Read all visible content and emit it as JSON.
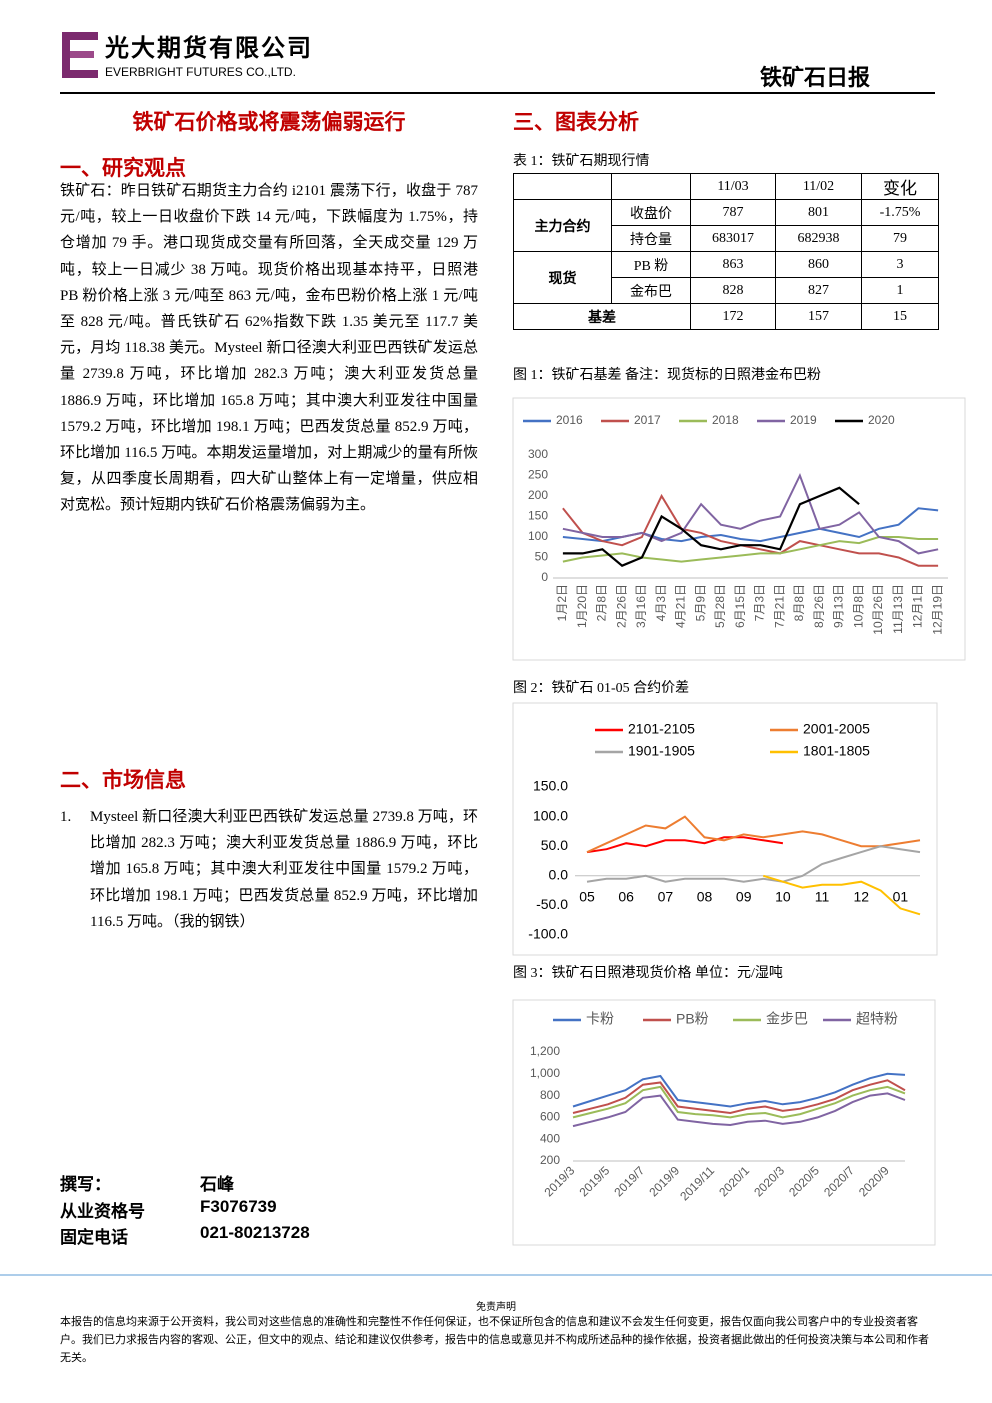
{
  "header": {
    "company_cn": "光大期货有限公司",
    "company_en": "EVERBRIGHT FUTURES CO.,LTD.",
    "report": "铁矿石日报"
  },
  "title": "铁矿石价格或将震荡偏弱运行",
  "sections": [
    {
      "heading": "一、研究观点",
      "body": "铁矿石：昨日铁矿石期货主力合约 i2101 震荡下行，收盘于 787 元/吨，较上一日收盘价下跌 14 元/吨，下跌幅度为 1.75%，持仓增加 79 手。港口现货成交量有所回落，全天成交量 129 万吨，较上一日减少 38 万吨。现货价格出现基本持平，日照港 PB 粉价格上涨 3 元/吨至 863 元/吨，金布巴粉价格上涨 1 元/吨至 828 元/吨。普氏铁矿石 62%指数下跌 1.35 美元至 117.7 美元，月均 118.38 美元。Mysteel 新口径澳大利亚巴西铁矿发运总量 2739.8 万吨，环比增加 282.3 万吨；澳大利亚发货总量 1886.9 万吨，环比增加 165.8 万吨；其中澳大利亚发往中国量 1579.2 万吨，环比增加 198.1 万吨；巴西发货总量 852.9 万吨，环比增加 116.5 万吨。本期发运量增加，对上期减少的量有所恢复，从四季度长周期看，四大矿山整体上有一定增量，供应相对宽松。预计短期内铁矿石价格震荡偏弱为主。"
    },
    {
      "heading": "二、市场信息",
      "items": [
        {
          "number": "1.",
          "text": "Mysteel 新口径澳大利亚巴西铁矿发运总量 2739.8 万吨，环比增加 282.3 万吨；澳大利亚发货总量 1886.9 万吨，环比增加 165.8 万吨；其中澳大利亚发往中国量 1579.2 万吨，环比增加 198.1 万吨；巴西发货总量 852.9 万吨，环比增加 116.5 万吨。（我的钢铁）"
        }
      ]
    },
    {
      "heading": "三、图表分析"
    }
  ],
  "table": {
    "caption": "表 1：铁矿石期现行情",
    "header": [
      "11/03",
      "11/02",
      "变化"
    ],
    "groups": [
      {
        "label": "主力合约",
        "rows": [
          [
            "收盘价",
            "787",
            "801",
            "-1.75%"
          ],
          [
            "持仓量",
            "683017",
            "682938",
            "79"
          ]
        ]
      },
      {
        "label": "现货",
        "rows": [
          [
            "PB 粉",
            "863",
            "860",
            "3"
          ],
          [
            "金布巴",
            "828",
            "827",
            "1"
          ]
        ]
      },
      {
        "label": "基差",
        "rows": [
          [
            "172",
            "157",
            "15"
          ]
        ]
      }
    ]
  },
  "authors": [
    {
      "label": "撰写：",
      "value": "石峰"
    },
    {
      "label": "从业资格号",
      "value": "F3076739"
    },
    {
      "label": "固定电话",
      "value": "021-80213728"
    }
  ],
  "disclaimer": {
    "title": "免责声明",
    "text": "本报告的信息均来源于公开资料，我公司对这些信息的准确性和完整性不作任何保证，也不保证所包含的信息和建议不会发生任何变更，报告仅面向我公司客户中的专业投资者客户。我们已力求报告内容的客观、公正，但文中的观点、结论和建议仅供参考，报告中的信息或意见并不构成所述品种的操作依据，投资者据此做出的任何投资决策与本公司和作者无关。"
  },
  "chart_data": [
    {
      "type": "line",
      "title": "图 1：铁矿石基差    备注：现货标的日照港金布巴粉",
      "categories": [
        "1月2日",
        "1月20日",
        "2月8日",
        "2月26日",
        "3月16日",
        "4月3日",
        "4月21日",
        "5月9日",
        "5月28日",
        "6月15日",
        "7月3日",
        "7月21日",
        "8月8日",
        "8月26日",
        "9月13日",
        "10月8日",
        "10月26日",
        "11月13日",
        "12月1日",
        "12月19日"
      ],
      "series": [
        {
          "name": "2016",
          "color": "#4472c4",
          "values": [
            100,
            95,
            90,
            100,
            110,
            95,
            90,
            100,
            105,
            95,
            90,
            100,
            110,
            120,
            110,
            100,
            120,
            130,
            170,
            165
          ]
        },
        {
          "name": "2017",
          "color": "#c0504d",
          "values": [
            170,
            110,
            90,
            80,
            100,
            200,
            120,
            110,
            90,
            80,
            70,
            60,
            90,
            80,
            70,
            60,
            60,
            50,
            30,
            30
          ]
        },
        {
          "name": "2018",
          "color": "#9bbb59",
          "values": [
            40,
            50,
            55,
            60,
            50,
            45,
            40,
            45,
            50,
            55,
            60,
            60,
            70,
            80,
            90,
            85,
            100,
            100,
            95,
            95
          ]
        },
        {
          "name": "2019",
          "color": "#8064a2",
          "values": [
            120,
            110,
            100,
            100,
            110,
            90,
            110,
            180,
            130,
            120,
            140,
            150,
            250,
            120,
            130,
            160,
            100,
            90,
            60,
            70
          ]
        },
        {
          "name": "2020",
          "color": "#000000",
          "values": [
            60,
            60,
            70,
            30,
            50,
            150,
            120,
            80,
            70,
            80,
            80,
            70,
            180,
            200,
            220,
            180,
            null,
            null,
            null,
            null
          ]
        }
      ],
      "ylim": [
        0,
        300
      ],
      "yticks": [
        0,
        50,
        100,
        150,
        200,
        250,
        300
      ],
      "grid": false
    },
    {
      "type": "line",
      "title": "图 2：铁矿石 01-05 合约价差",
      "categories": [
        "05",
        null,
        "06",
        null,
        "07",
        null,
        "08",
        null,
        "09",
        null,
        "10",
        null,
        "11",
        null,
        "12",
        null,
        "01",
        null
      ],
      "series": [
        {
          "name": "2101-2105",
          "color": "#ff0000",
          "values": [
            40,
            45,
            55,
            50,
            60,
            60,
            55,
            65,
            65,
            60,
            55,
            null,
            null,
            null,
            null,
            null,
            null,
            null
          ]
        },
        {
          "name": "2001-2005",
          "color": "#ed7d31",
          "values": [
            40,
            55,
            70,
            85,
            80,
            100,
            65,
            60,
            70,
            65,
            70,
            75,
            70,
            60,
            50,
            50,
            55,
            60
          ]
        },
        {
          "name": "1901-1905",
          "color": "#a5a5a5",
          "values": [
            -10,
            -5,
            -5,
            0,
            -10,
            -5,
            -5,
            -5,
            -10,
            -5,
            -10,
            0,
            20,
            30,
            40,
            50,
            45,
            40
          ]
        },
        {
          "name": "1801-1805",
          "color": "#ffc000",
          "values": [
            null,
            null,
            null,
            null,
            null,
            null,
            null,
            null,
            null,
            0,
            -10,
            -20,
            -15,
            -15,
            -10,
            -25,
            -55,
            -65
          ]
        }
      ],
      "ylim": [
        -100,
        150
      ],
      "yticks": [
        {
          "value": -100,
          "label": "-100.0"
        },
        {
          "value": -50,
          "label": "-50.0"
        },
        {
          "value": 0,
          "label": "0.0"
        },
        {
          "value": 50,
          "label": "50.0"
        },
        {
          "value": 100,
          "label": "100.0"
        },
        {
          "value": 150,
          "label": "150.0"
        }
      ],
      "grid": false
    },
    {
      "type": "line",
      "title": "图 3：铁矿石日照港现货价格 单位：元/湿吨",
      "categories": [
        "2019/3",
        null,
        "2019/5",
        null,
        "2019/7",
        null,
        "2019/9",
        null,
        "2019/11",
        null,
        "2020/1",
        null,
        "2020/3",
        null,
        "2020/5",
        null,
        "2020/7",
        null,
        "2020/9",
        null
      ],
      "series": [
        {
          "name": "卡粉",
          "color": "#4472c4",
          "values": [
            700,
            750,
            800,
            850,
            950,
            980,
            760,
            740,
            720,
            700,
            730,
            750,
            720,
            740,
            780,
            830,
            900,
            960,
            1000,
            990
          ]
        },
        {
          "name": "PB粉",
          "color": "#c0504d",
          "values": [
            640,
            680,
            720,
            780,
            900,
            920,
            700,
            680,
            660,
            640,
            680,
            700,
            660,
            680,
            720,
            770,
            850,
            900,
            940,
            850
          ]
        },
        {
          "name": "金步巴",
          "color": "#9bbb59",
          "values": [
            600,
            640,
            680,
            730,
            850,
            880,
            650,
            630,
            620,
            600,
            630,
            640,
            600,
            630,
            680,
            730,
            800,
            850,
            880,
            820
          ]
        },
        {
          "name": "超特粉",
          "color": "#8064a2",
          "values": [
            520,
            560,
            600,
            650,
            780,
            800,
            580,
            560,
            540,
            530,
            560,
            570,
            540,
            560,
            600,
            660,
            740,
            800,
            820,
            760
          ]
        }
      ],
      "ylim": [
        200,
        1200
      ],
      "yticks": [
        200,
        400,
        600,
        800,
        {
          "value": 1000,
          "label": "1,000"
        },
        {
          "value": 1200,
          "label": "1,200"
        }
      ],
      "grid": false
    }
  ]
}
